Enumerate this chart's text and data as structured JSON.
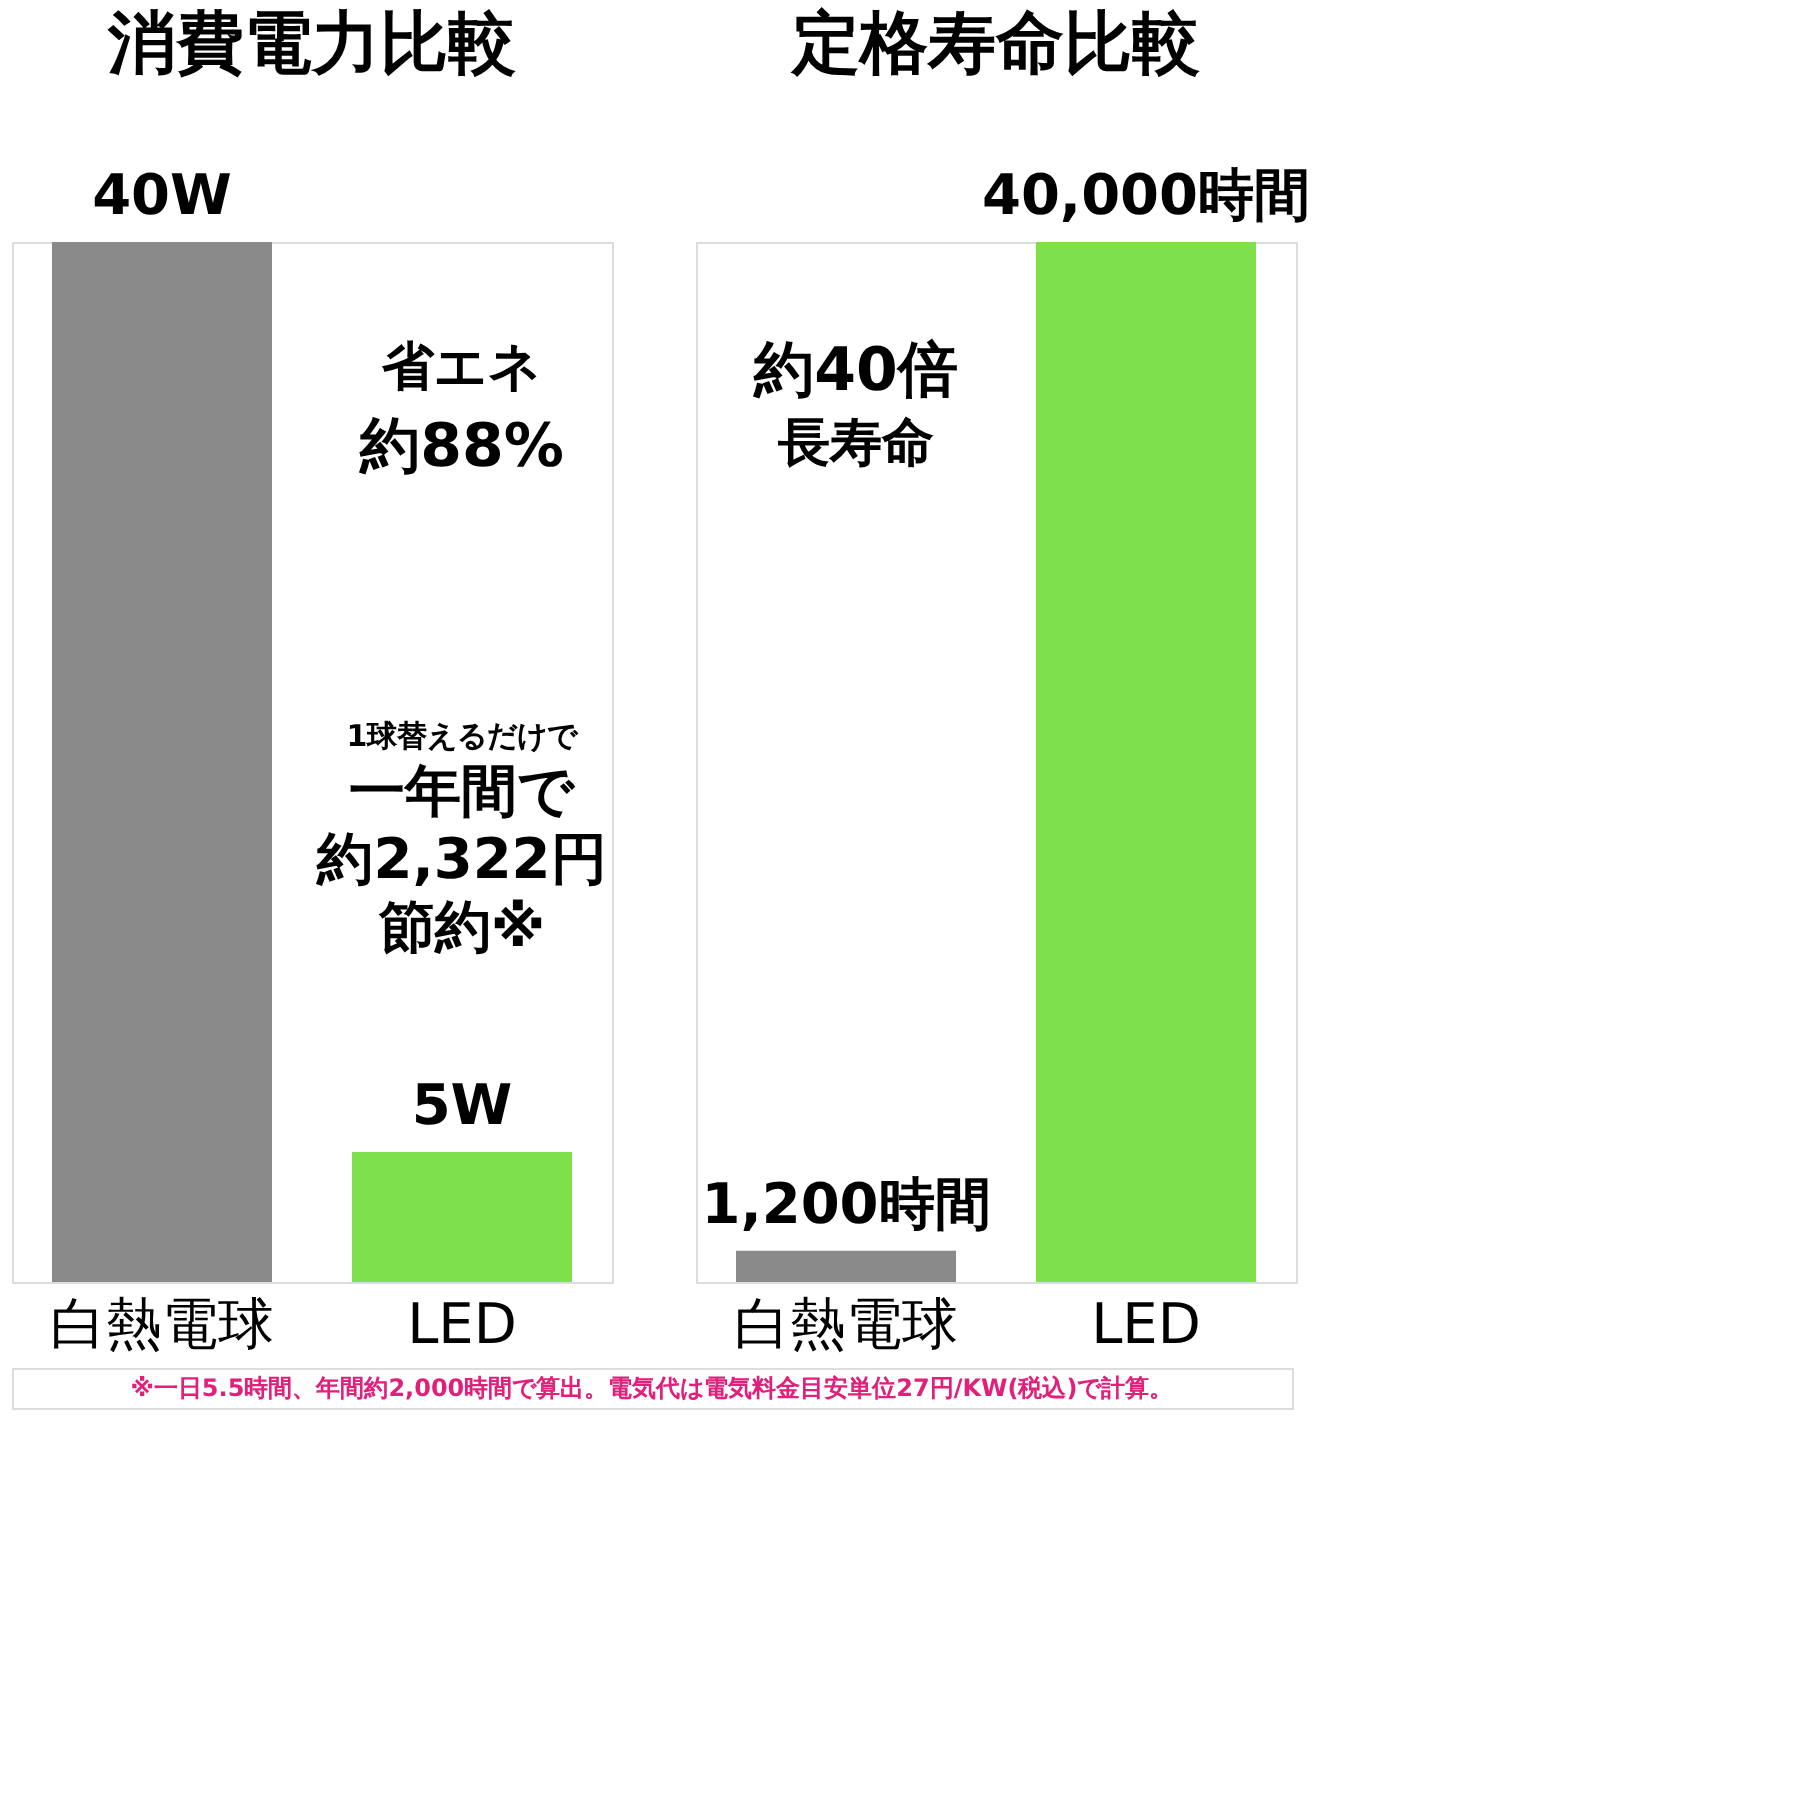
{
  "chart_data": [
    {
      "type": "bar",
      "title": "消費電力比較",
      "categories": [
        "白熱電球",
        "LED"
      ],
      "values": [
        40,
        5
      ],
      "colors": [
        "#8a8a8a",
        "#7ee04a"
      ],
      "value_labels": [
        "40W",
        "5W"
      ],
      "annotations": [
        "省エネ",
        "約88%",
        "1球替えるだけで",
        "一年間で",
        "約2,322円",
        "節約※"
      ]
    },
    {
      "type": "bar",
      "title": "定格寿命比較",
      "categories": [
        "白熱電球",
        "LED"
      ],
      "values": [
        1200,
        40000
      ],
      "colors": [
        "#8a8a8a",
        "#7ee04a"
      ],
      "value_labels": [
        "1,200時間",
        "40,000時間"
      ],
      "annotations": [
        "約40倍",
        "長寿命",
        "※一日5.5時間、年間約2,000時間で算出。電気代は電気料金目安単位27円/KW(税込)で計算。"
      ]
    }
  ]
}
